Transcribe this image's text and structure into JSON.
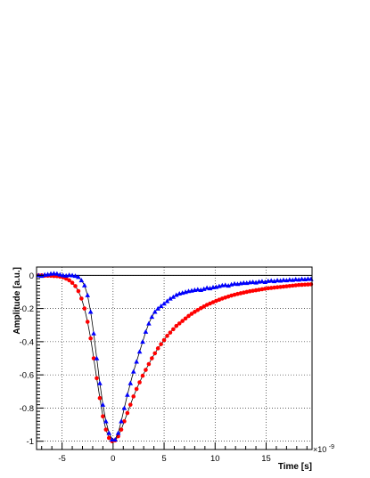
{
  "chart_data": {
    "type": "scatter",
    "xlabel": "Time [s]",
    "ylabel": "Amplitude [a.u.]",
    "x_multiplier_label": "×10",
    "x_multiplier_exp": "-9",
    "xlim": [
      -7.5,
      19.5
    ],
    "ylim": [
      -1.05,
      0.05
    ],
    "x_ticks": [
      -5,
      0,
      5,
      10,
      15
    ],
    "y_ticks": [
      0,
      -0.2,
      -0.4,
      -0.6,
      -0.8,
      -1
    ],
    "x_tick_labels": [
      "-5",
      "0",
      "5",
      "10",
      "15"
    ],
    "y_tick_labels": [
      "0",
      "-0.2",
      "-0.4",
      "-0.6",
      "-0.8",
      "-1"
    ],
    "grid": true,
    "reference_line_y": 0,
    "series": [
      {
        "marker": "circle",
        "color": "#ff0000",
        "line_color": "#000000",
        "points": [
          [
            -7.3,
            0.0
          ],
          [
            -7.0,
            0.0
          ],
          [
            -6.7,
            -0.002
          ],
          [
            -6.4,
            -0.002
          ],
          [
            -6.1,
            -0.003
          ],
          [
            -5.8,
            -0.004
          ],
          [
            -5.5,
            -0.005
          ],
          [
            -5.2,
            -0.008
          ],
          [
            -4.9,
            -0.012
          ],
          [
            -4.6,
            -0.02
          ],
          [
            -4.3,
            -0.03
          ],
          [
            -4.0,
            -0.045
          ],
          [
            -3.7,
            -0.065
          ],
          [
            -3.4,
            -0.095
          ],
          [
            -3.1,
            -0.14
          ],
          [
            -2.8,
            -0.2
          ],
          [
            -2.5,
            -0.28
          ],
          [
            -2.2,
            -0.38
          ],
          [
            -1.9,
            -0.5
          ],
          [
            -1.6,
            -0.62
          ],
          [
            -1.3,
            -0.74
          ],
          [
            -1.0,
            -0.85
          ],
          [
            -0.7,
            -0.93
          ],
          [
            -0.4,
            -0.98
          ],
          [
            -0.1,
            -1.0
          ],
          [
            0.2,
            -0.995
          ],
          [
            0.5,
            -0.97
          ],
          [
            0.8,
            -0.93
          ],
          [
            1.1,
            -0.88
          ],
          [
            1.4,
            -0.83
          ],
          [
            1.7,
            -0.78
          ],
          [
            2.0,
            -0.73
          ],
          [
            2.3,
            -0.685
          ],
          [
            2.6,
            -0.645
          ],
          [
            2.9,
            -0.605
          ],
          [
            3.2,
            -0.57
          ],
          [
            3.5,
            -0.535
          ],
          [
            3.8,
            -0.5
          ],
          [
            4.1,
            -0.47
          ],
          [
            4.4,
            -0.44
          ],
          [
            4.7,
            -0.415
          ],
          [
            5.0,
            -0.39
          ],
          [
            5.3,
            -0.365
          ],
          [
            5.6,
            -0.345
          ],
          [
            5.9,
            -0.325
          ],
          [
            6.2,
            -0.305
          ],
          [
            6.5,
            -0.29
          ],
          [
            6.8,
            -0.275
          ],
          [
            7.1,
            -0.26
          ],
          [
            7.4,
            -0.245
          ],
          [
            7.7,
            -0.232
          ],
          [
            8.0,
            -0.22
          ],
          [
            8.3,
            -0.209
          ],
          [
            8.6,
            -0.198
          ],
          [
            8.9,
            -0.188
          ],
          [
            9.2,
            -0.178
          ],
          [
            9.5,
            -0.17
          ],
          [
            9.8,
            -0.162
          ],
          [
            10.1,
            -0.154
          ],
          [
            10.4,
            -0.147
          ],
          [
            10.7,
            -0.14
          ],
          [
            11.0,
            -0.134
          ],
          [
            11.3,
            -0.128
          ],
          [
            11.6,
            -0.122
          ],
          [
            11.9,
            -0.117
          ],
          [
            12.2,
            -0.112
          ],
          [
            12.5,
            -0.108
          ],
          [
            12.8,
            -0.104
          ],
          [
            13.1,
            -0.1
          ],
          [
            13.4,
            -0.096
          ],
          [
            13.7,
            -0.093
          ],
          [
            14.0,
            -0.09
          ],
          [
            14.3,
            -0.087
          ],
          [
            14.6,
            -0.084
          ],
          [
            14.9,
            -0.081
          ],
          [
            15.2,
            -0.078
          ],
          [
            15.5,
            -0.076
          ],
          [
            15.8,
            -0.074
          ],
          [
            16.1,
            -0.072
          ],
          [
            16.4,
            -0.07
          ],
          [
            16.7,
            -0.068
          ],
          [
            17.0,
            -0.066
          ],
          [
            17.3,
            -0.064
          ],
          [
            17.6,
            -0.062
          ],
          [
            17.9,
            -0.06
          ],
          [
            18.2,
            -0.058
          ],
          [
            18.5,
            -0.057
          ],
          [
            18.8,
            -0.056
          ],
          [
            19.1,
            -0.055
          ],
          [
            19.4,
            -0.054
          ]
        ]
      },
      {
        "marker": "triangle",
        "color": "#0000ff",
        "line_color": "#000000",
        "points": [
          [
            -7.3,
            0.0
          ],
          [
            -7.0,
            -0.003
          ],
          [
            -6.7,
            0.004
          ],
          [
            -6.4,
            0.006
          ],
          [
            -6.1,
            0.01
          ],
          [
            -5.8,
            0.012
          ],
          [
            -5.5,
            0.01
          ],
          [
            -5.2,
            0.005
          ],
          [
            -4.9,
            0.0
          ],
          [
            -4.6,
            -0.002
          ],
          [
            -4.3,
            0.002
          ],
          [
            -4.0,
            0.0
          ],
          [
            -3.7,
            -0.003
          ],
          [
            -3.4,
            -0.01
          ],
          [
            -3.1,
            -0.03
          ],
          [
            -2.8,
            -0.06
          ],
          [
            -2.5,
            -0.12
          ],
          [
            -2.2,
            -0.22
          ],
          [
            -1.9,
            -0.35
          ],
          [
            -1.6,
            -0.5
          ],
          [
            -1.3,
            -0.65
          ],
          [
            -1.0,
            -0.78
          ],
          [
            -0.7,
            -0.88
          ],
          [
            -0.4,
            -0.95
          ],
          [
            -0.1,
            -0.99
          ],
          [
            0.2,
            -0.99
          ],
          [
            0.5,
            -0.95
          ],
          [
            0.8,
            -0.88
          ],
          [
            1.1,
            -0.8
          ],
          [
            1.4,
            -0.72
          ],
          [
            1.7,
            -0.65
          ],
          [
            2.0,
            -0.58
          ],
          [
            2.3,
            -0.52
          ],
          [
            2.6,
            -0.46
          ],
          [
            2.9,
            -0.4
          ],
          [
            3.2,
            -0.34
          ],
          [
            3.5,
            -0.29
          ],
          [
            3.8,
            -0.25
          ],
          [
            4.1,
            -0.22
          ],
          [
            4.4,
            -0.2
          ],
          [
            4.7,
            -0.185
          ],
          [
            5.0,
            -0.17
          ],
          [
            5.3,
            -0.155
          ],
          [
            5.6,
            -0.14
          ],
          [
            5.9,
            -0.13
          ],
          [
            6.2,
            -0.118
          ],
          [
            6.5,
            -0.11
          ],
          [
            6.8,
            -0.105
          ],
          [
            7.1,
            -0.1
          ],
          [
            7.4,
            -0.095
          ],
          [
            7.7,
            -0.092
          ],
          [
            8.0,
            -0.088
          ],
          [
            8.3,
            -0.085
          ],
          [
            8.6,
            -0.088
          ],
          [
            8.9,
            -0.082
          ],
          [
            9.2,
            -0.075
          ],
          [
            9.5,
            -0.078
          ],
          [
            9.8,
            -0.072
          ],
          [
            10.1,
            -0.07
          ],
          [
            10.4,
            -0.065
          ],
          [
            10.7,
            -0.06
          ],
          [
            11.0,
            -0.058
          ],
          [
            11.3,
            -0.062
          ],
          [
            11.6,
            -0.055
          ],
          [
            11.9,
            -0.05
          ],
          [
            12.2,
            -0.052
          ],
          [
            12.5,
            -0.048
          ],
          [
            12.8,
            -0.045
          ],
          [
            13.1,
            -0.046
          ],
          [
            13.4,
            -0.042
          ],
          [
            13.7,
            -0.04
          ],
          [
            14.0,
            -0.043
          ],
          [
            14.3,
            -0.038
          ],
          [
            14.6,
            -0.036
          ],
          [
            14.9,
            -0.04
          ],
          [
            15.2,
            -0.034
          ],
          [
            15.5,
            -0.032
          ],
          [
            15.8,
            -0.035
          ],
          [
            16.1,
            -0.03
          ],
          [
            16.4,
            -0.032
          ],
          [
            16.7,
            -0.028
          ],
          [
            17.0,
            -0.03
          ],
          [
            17.3,
            -0.026
          ],
          [
            17.6,
            -0.028
          ],
          [
            17.9,
            -0.024
          ],
          [
            18.2,
            -0.026
          ],
          [
            18.5,
            -0.022
          ],
          [
            18.8,
            -0.024
          ],
          [
            19.1,
            -0.021
          ],
          [
            19.4,
            -0.022
          ]
        ]
      }
    ]
  }
}
